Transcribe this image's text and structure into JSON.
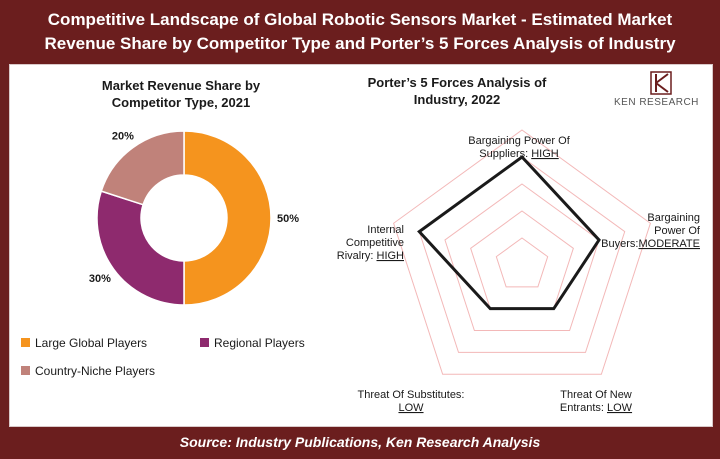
{
  "header": {
    "title_line1": "Competitive Landscape of Global Robotic Sensors Market - Estimated Market",
    "title_line2": "Revenue Share by Competitor Type and Porter’s 5 Forces Analysis of Industry"
  },
  "footer": {
    "source": "Source: Industry Publications, Ken Research Analysis"
  },
  "logo": {
    "text": "KEN RESEARCH",
    "icon": "ken-research-logo"
  },
  "colors": {
    "frame": "#6b1e1e",
    "large_global": "#f5941e",
    "regional": "#8e2a6e",
    "country_niche": "#c0827a",
    "radar_line": "#1a1a1a",
    "radar_grid": "#f3b8b8"
  },
  "chart_data": [
    {
      "type": "pie",
      "style": "donut",
      "title_line1": "Market Revenue Share by",
      "title_line2": "Competitor Type, 2021",
      "categories": [
        "Large Global Players",
        "Regional Players",
        "Country-Niche Players"
      ],
      "values": [
        50,
        30,
        20
      ],
      "value_labels": [
        "50%",
        "30%",
        "20%"
      ],
      "legend_placement": "bottom"
    },
    {
      "type": "radar",
      "title_line1": "Porter’s 5 Forces Analysis of",
      "title_line2": "Industry, 2022",
      "axes": [
        {
          "label_lines": [
            "Bargaining Power Of",
            "Suppliers: "
          ],
          "level": "HIGH",
          "value": 4
        },
        {
          "label_lines": [
            "Bargaining",
            "Power Of",
            "Buyers:"
          ],
          "level": "MODERATE",
          "value": 3
        },
        {
          "label_lines": [
            "Threat Of New",
            "Entrants: "
          ],
          "level": "LOW",
          "value": 2
        },
        {
          "label_lines": [
            "Threat Of Substitutes:",
            ""
          ],
          "level": "LOW",
          "value": 2
        },
        {
          "label_lines": [
            "Internal",
            "Competitive",
            "Rivalry: "
          ],
          "level": "HIGH",
          "value": 4
        }
      ],
      "scale_max": 5,
      "grid_levels": 5
    }
  ]
}
